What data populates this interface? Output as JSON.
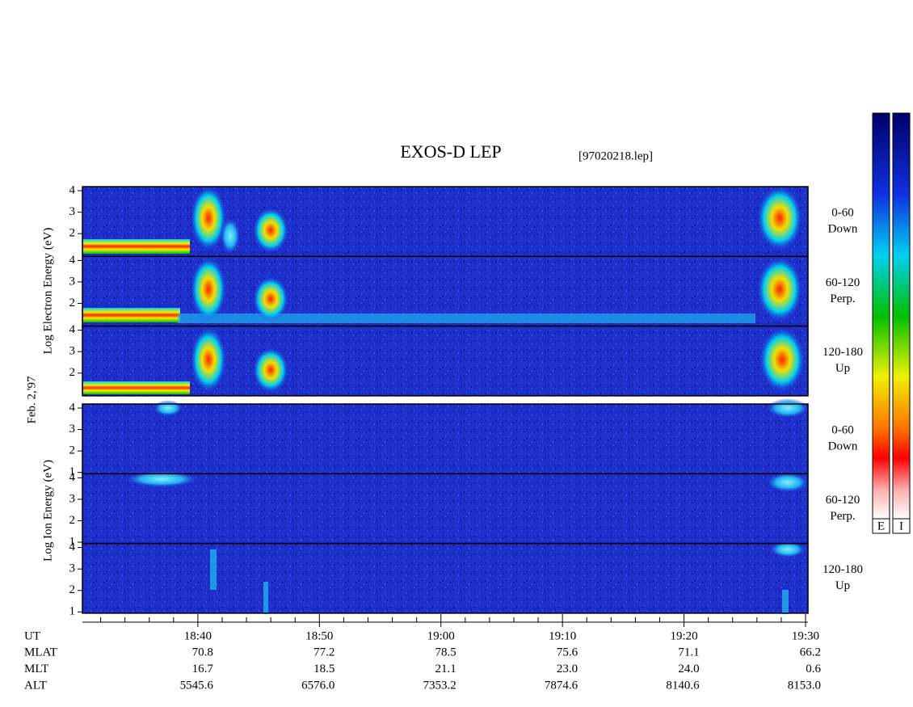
{
  "chart_data": {
    "type": "spectrogram",
    "title": "EXOS-D LEP",
    "file_label": "[97020218.lep]",
    "date_label": "Feb. 2,'97",
    "electron_axis_label": "Log Electron Energy (eV)",
    "ion_axis_label": "Log Ion Energy (eV)",
    "electron_panels": [
      {
        "label": [
          "0-60",
          "Down"
        ]
      },
      {
        "label": [
          "60-120",
          "Perp."
        ]
      },
      {
        "label": [
          "120-180",
          "Up"
        ]
      }
    ],
    "ion_panels": [
      {
        "label": [
          "0-60",
          "Down"
        ]
      },
      {
        "label": [
          "60-120",
          "Perp."
        ]
      },
      {
        "label": [
          "120-180",
          "Up"
        ]
      }
    ],
    "ylim": [
      0.94,
      4.19
    ],
    "electron_yticks": [
      2,
      3,
      4
    ],
    "ion_yticks": [
      1,
      2,
      3,
      4
    ],
    "xlim": [
      30.5,
      90.2
    ],
    "xticks": [
      {
        "value": 40,
        "label": "18:40"
      },
      {
        "value": 50,
        "label": "18:50"
      },
      {
        "value": 60,
        "label": "19:00"
      },
      {
        "value": 70,
        "label": "19:10"
      },
      {
        "value": 80,
        "label": "19:20"
      },
      {
        "value": 90,
        "label": "19:30"
      }
    ],
    "minor_xticks": [
      32,
      34,
      36,
      38,
      42,
      44,
      46,
      48,
      52,
      54,
      56,
      58,
      62,
      64,
      66,
      68,
      72,
      74,
      76,
      78,
      82,
      84,
      86,
      88
    ],
    "time_label": "UT",
    "ephemeris": [
      {
        "name": "MLAT",
        "values": [
          "70.8",
          "77.2",
          "78.5",
          "75.6",
          "71.1",
          "66.2"
        ]
      },
      {
        "name": "MLT",
        "values": [
          "16.7",
          "18.5",
          "21.1",
          "23.0",
          "24.0",
          "0.6"
        ]
      },
      {
        "name": "ALT",
        "values": [
          "5545.6",
          "6576.0",
          "7353.2",
          "7874.6",
          "8140.6",
          "8153.0"
        ]
      }
    ],
    "colorbar_labels": [
      "E",
      "I"
    ]
  }
}
